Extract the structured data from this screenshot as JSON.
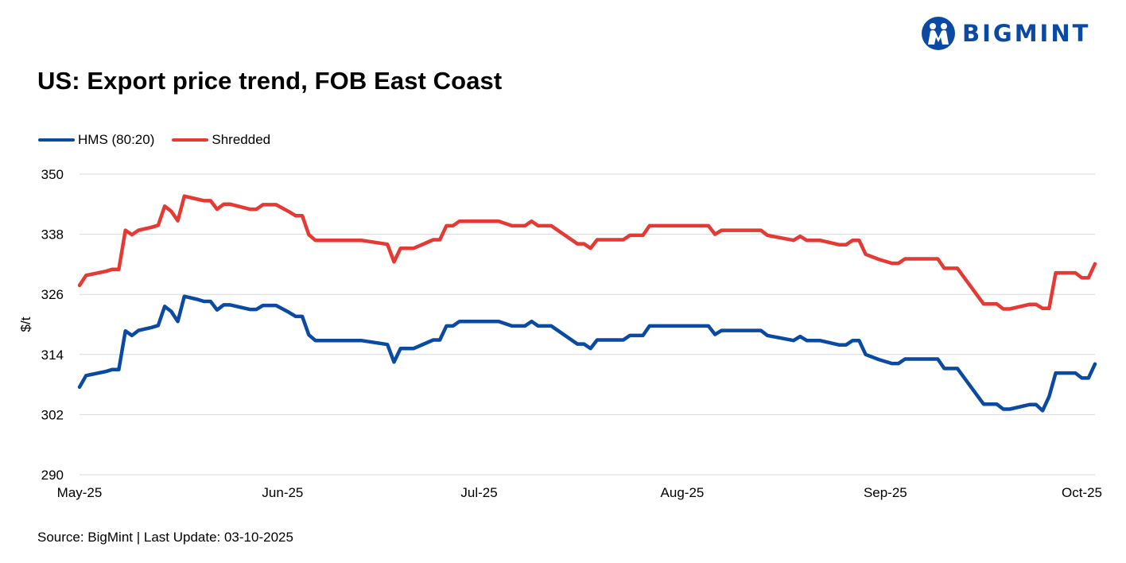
{
  "header": {
    "title": "US: Export price trend, FOB East Coast",
    "logo_text": "BIGMINT",
    "brand_color": "#0b4aa2"
  },
  "footer": {
    "source": "Source: BigMint | Last Update: 03-10-2025"
  },
  "chart_data": {
    "type": "line",
    "title": "US: Export price trend, FOB East Coast",
    "xlabel": "",
    "ylabel": "$/t",
    "ylim": [
      290,
      350
    ],
    "yticks": [
      290,
      302,
      314,
      326,
      338,
      350
    ],
    "x_range": [
      "2025-05-01",
      "2025-10-03"
    ],
    "xticks": [
      {
        "date": "2025-05-01",
        "label": "May-25"
      },
      {
        "date": "2025-06-01",
        "label": "Jun-25"
      },
      {
        "date": "2025-07-01",
        "label": "Jul-25"
      },
      {
        "date": "2025-08-01",
        "label": "Aug-25"
      },
      {
        "date": "2025-09-01",
        "label": "Sep-25"
      },
      {
        "date": "2025-10-01",
        "label": "Oct-25"
      }
    ],
    "grid": true,
    "legend_position": "top-left",
    "series": [
      {
        "name": "HMS (80:20)",
        "color": "#0b4aa2",
        "points": [
          [
            "2025-05-01",
            307.5
          ],
          [
            "2025-05-02",
            309.8
          ],
          [
            "2025-05-05",
            310.6
          ],
          [
            "2025-05-06",
            311.0
          ],
          [
            "2025-05-07",
            311.0
          ],
          [
            "2025-05-07",
            311.0
          ],
          [
            "2025-05-08",
            318.7
          ],
          [
            "2025-05-09",
            317.8
          ],
          [
            "2025-05-10",
            318.8
          ],
          [
            "2025-05-12",
            319.4
          ],
          [
            "2025-05-13",
            319.8
          ],
          [
            "2025-05-14",
            323.6
          ],
          [
            "2025-05-15",
            322.6
          ],
          [
            "2025-05-16",
            320.6
          ],
          [
            "2025-05-17",
            325.6
          ],
          [
            "2025-05-19",
            325.0
          ],
          [
            "2025-05-20",
            324.6
          ],
          [
            "2025-05-21",
            324.6
          ],
          [
            "2025-05-22",
            322.9
          ],
          [
            "2025-05-23",
            323.9
          ],
          [
            "2025-05-24",
            323.9
          ],
          [
            "2025-05-27",
            323.0
          ],
          [
            "2025-05-28",
            323.0
          ],
          [
            "2025-05-29",
            323.8
          ],
          [
            "2025-05-31",
            323.8
          ],
          [
            "2025-06-02",
            322.4
          ],
          [
            "2025-06-03",
            321.6
          ],
          [
            "2025-06-04",
            321.6
          ],
          [
            "2025-06-05",
            317.9
          ],
          [
            "2025-06-06",
            316.8
          ],
          [
            "2025-06-10",
            316.8
          ],
          [
            "2025-06-13",
            316.8
          ],
          [
            "2025-06-17",
            316.0
          ],
          [
            "2025-06-18",
            312.5
          ],
          [
            "2025-06-19",
            315.2
          ],
          [
            "2025-06-21",
            315.2
          ],
          [
            "2025-06-24",
            316.9
          ],
          [
            "2025-06-25",
            316.9
          ],
          [
            "2025-06-26",
            319.7
          ],
          [
            "2025-06-27",
            319.7
          ],
          [
            "2025-06-28",
            320.6
          ],
          [
            "2025-07-04",
            320.6
          ],
          [
            "2025-07-06",
            319.7
          ],
          [
            "2025-07-08",
            319.7
          ],
          [
            "2025-07-09",
            320.6
          ],
          [
            "2025-07-10",
            319.7
          ],
          [
            "2025-07-12",
            319.7
          ],
          [
            "2025-07-16",
            316.1
          ],
          [
            "2025-07-17",
            316.1
          ],
          [
            "2025-07-18",
            315.2
          ],
          [
            "2025-07-19",
            316.9
          ],
          [
            "2025-07-23",
            316.9
          ],
          [
            "2025-07-24",
            317.8
          ],
          [
            "2025-07-26",
            317.8
          ],
          [
            "2025-07-27",
            319.7
          ],
          [
            "2025-08-03",
            319.7
          ],
          [
            "2025-08-05",
            319.7
          ],
          [
            "2025-08-06",
            318.0
          ],
          [
            "2025-08-07",
            318.8
          ],
          [
            "2025-08-13",
            318.8
          ],
          [
            "2025-08-14",
            317.8
          ],
          [
            "2025-08-18",
            316.8
          ],
          [
            "2025-08-19",
            317.6
          ],
          [
            "2025-08-20",
            316.8
          ],
          [
            "2025-08-22",
            316.8
          ],
          [
            "2025-08-25",
            315.9
          ],
          [
            "2025-08-26",
            315.9
          ],
          [
            "2025-08-27",
            316.8
          ],
          [
            "2025-08-28",
            316.8
          ],
          [
            "2025-08-29",
            314.0
          ],
          [
            "2025-08-31",
            313.0
          ],
          [
            "2025-09-02",
            312.2
          ],
          [
            "2025-09-03",
            312.2
          ],
          [
            "2025-09-04",
            313.1
          ],
          [
            "2025-09-09",
            313.1
          ],
          [
            "2025-09-10",
            311.2
          ],
          [
            "2025-09-12",
            311.2
          ],
          [
            "2025-09-16",
            304.1
          ],
          [
            "2025-09-18",
            304.1
          ],
          [
            "2025-09-19",
            303.1
          ],
          [
            "2025-09-20",
            303.1
          ],
          [
            "2025-09-23",
            304.0
          ],
          [
            "2025-09-24",
            304.0
          ],
          [
            "2025-09-25",
            302.8
          ],
          [
            "2025-09-26",
            305.6
          ],
          [
            "2025-09-27",
            310.3
          ],
          [
            "2025-09-30",
            310.3
          ],
          [
            "2025-10-01",
            309.3
          ],
          [
            "2025-10-02",
            309.3
          ],
          [
            "2025-10-03",
            312.1
          ]
        ]
      },
      {
        "name": "Shredded",
        "color": "#e53a33",
        "points": [
          [
            "2025-05-01",
            327.8
          ],
          [
            "2025-05-02",
            329.8
          ],
          [
            "2025-05-05",
            330.6
          ],
          [
            "2025-05-06",
            331.0
          ],
          [
            "2025-05-07",
            331.0
          ],
          [
            "2025-05-07",
            331.0
          ],
          [
            "2025-05-08",
            338.8
          ],
          [
            "2025-05-09",
            337.9
          ],
          [
            "2025-05-10",
            338.8
          ],
          [
            "2025-05-12",
            339.4
          ],
          [
            "2025-05-13",
            339.8
          ],
          [
            "2025-05-14",
            343.6
          ],
          [
            "2025-05-15",
            342.6
          ],
          [
            "2025-05-16",
            340.7
          ],
          [
            "2025-05-17",
            345.6
          ],
          [
            "2025-05-19",
            345.0
          ],
          [
            "2025-05-20",
            344.7
          ],
          [
            "2025-05-21",
            344.7
          ],
          [
            "2025-05-22",
            343.0
          ],
          [
            "2025-05-23",
            344.0
          ],
          [
            "2025-05-24",
            344.0
          ],
          [
            "2025-05-27",
            343.0
          ],
          [
            "2025-05-28",
            343.0
          ],
          [
            "2025-05-29",
            343.9
          ],
          [
            "2025-05-31",
            343.9
          ],
          [
            "2025-06-02",
            342.5
          ],
          [
            "2025-06-03",
            341.7
          ],
          [
            "2025-06-04",
            341.7
          ],
          [
            "2025-06-05",
            337.9
          ],
          [
            "2025-06-06",
            336.8
          ],
          [
            "2025-06-10",
            336.8
          ],
          [
            "2025-06-13",
            336.8
          ],
          [
            "2025-06-17",
            336.0
          ],
          [
            "2025-06-18",
            332.5
          ],
          [
            "2025-06-19",
            335.2
          ],
          [
            "2025-06-21",
            335.2
          ],
          [
            "2025-06-24",
            336.9
          ],
          [
            "2025-06-25",
            336.9
          ],
          [
            "2025-06-26",
            339.7
          ],
          [
            "2025-06-27",
            339.7
          ],
          [
            "2025-06-28",
            340.6
          ],
          [
            "2025-07-04",
            340.6
          ],
          [
            "2025-07-06",
            339.7
          ],
          [
            "2025-07-08",
            339.7
          ],
          [
            "2025-07-09",
            340.6
          ],
          [
            "2025-07-10",
            339.7
          ],
          [
            "2025-07-12",
            339.7
          ],
          [
            "2025-07-16",
            336.1
          ],
          [
            "2025-07-17",
            336.1
          ],
          [
            "2025-07-18",
            335.2
          ],
          [
            "2025-07-19",
            336.9
          ],
          [
            "2025-07-23",
            336.9
          ],
          [
            "2025-07-24",
            337.8
          ],
          [
            "2025-07-26",
            337.8
          ],
          [
            "2025-07-27",
            339.7
          ],
          [
            "2025-08-03",
            339.7
          ],
          [
            "2025-08-05",
            339.7
          ],
          [
            "2025-08-06",
            338.0
          ],
          [
            "2025-08-07",
            338.8
          ],
          [
            "2025-08-13",
            338.8
          ],
          [
            "2025-08-14",
            337.8
          ],
          [
            "2025-08-18",
            336.8
          ],
          [
            "2025-08-19",
            337.6
          ],
          [
            "2025-08-20",
            336.8
          ],
          [
            "2025-08-22",
            336.8
          ],
          [
            "2025-08-25",
            335.9
          ],
          [
            "2025-08-26",
            335.9
          ],
          [
            "2025-08-27",
            336.8
          ],
          [
            "2025-08-28",
            336.8
          ],
          [
            "2025-08-29",
            334.0
          ],
          [
            "2025-08-31",
            333.0
          ],
          [
            "2025-09-02",
            332.2
          ],
          [
            "2025-09-03",
            332.2
          ],
          [
            "2025-09-04",
            333.1
          ],
          [
            "2025-09-09",
            333.1
          ],
          [
            "2025-09-10",
            331.2
          ],
          [
            "2025-09-12",
            331.2
          ],
          [
            "2025-09-16",
            324.1
          ],
          [
            "2025-09-18",
            324.1
          ],
          [
            "2025-09-19",
            323.1
          ],
          [
            "2025-09-20",
            323.1
          ],
          [
            "2025-09-23",
            324.0
          ],
          [
            "2025-09-24",
            324.0
          ],
          [
            "2025-09-25",
            323.2
          ],
          [
            "2025-09-26",
            323.2
          ],
          [
            "2025-09-27",
            330.3
          ],
          [
            "2025-09-30",
            330.3
          ],
          [
            "2025-10-01",
            329.3
          ],
          [
            "2025-10-02",
            329.3
          ],
          [
            "2025-10-03",
            332.1
          ]
        ]
      }
    ]
  }
}
